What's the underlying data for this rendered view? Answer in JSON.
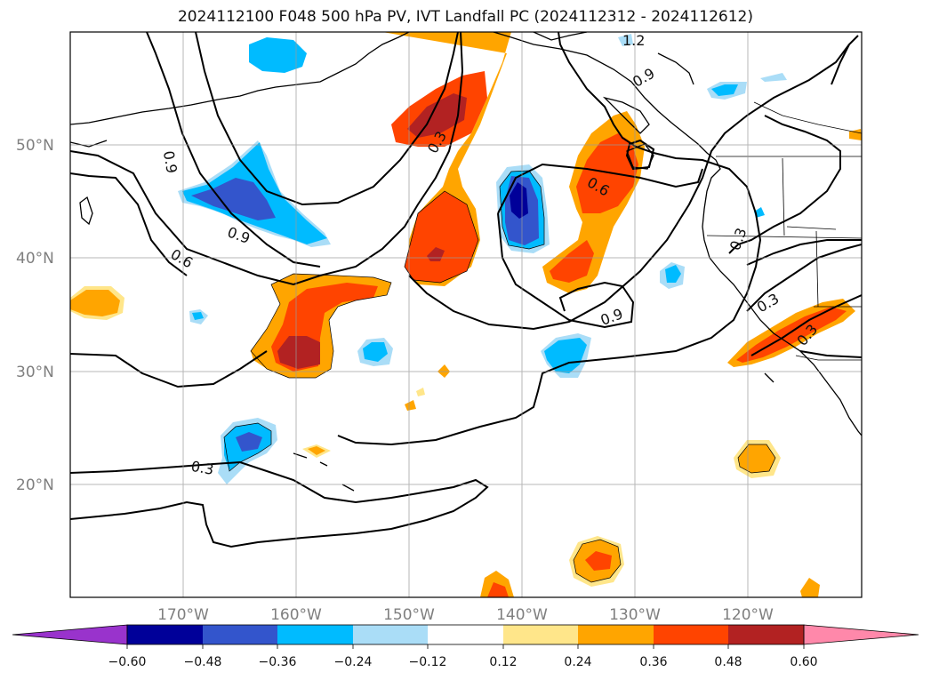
{
  "title": "2024112100 F048 500 hPa PV, IVT Landfall PC (2024112312 - 2024112612)",
  "map": {
    "lon_range": [
      -180,
      -110
    ],
    "lat_range": [
      10,
      60
    ],
    "lat_ticks": [
      "50°N",
      "40°N",
      "30°N",
      "20°N"
    ],
    "lon_ticks": [
      "170°W",
      "160°W",
      "150°W",
      "140°W",
      "130°W",
      "120°W"
    ],
    "contour_labels": [
      "0.9",
      "0.9",
      "0.6",
      "0.3",
      "0.3",
      "0.6",
      "0.9",
      "1.2",
      "0.9",
      "0.3",
      "0.3",
      "0.3"
    ]
  },
  "colorbar": {
    "ticks": [
      "−0.60",
      "−0.48",
      "−0.36",
      "−0.24",
      "−0.12",
      "0.12",
      "0.24",
      "0.36",
      "0.48",
      "0.60"
    ],
    "colors": [
      "#9933cc",
      "#000099",
      "#3355cc",
      "#00bbff",
      "#aaddf7",
      "#ffffff",
      "#ffe68a",
      "#ffa500",
      "#ff4400",
      "#b22222",
      "#ff88aa"
    ]
  }
}
